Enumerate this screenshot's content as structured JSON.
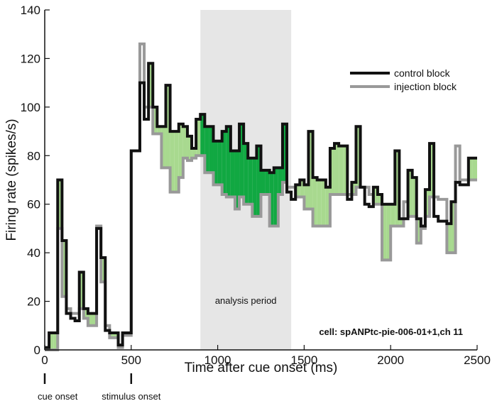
{
  "chart_data": {
    "type": "line",
    "subtype": "step-psth",
    "xlabel": "Time after cue onset (ms)",
    "ylabel": "Firing rate (spikes/s)",
    "xlim": [
      0,
      2500
    ],
    "ylim": [
      0,
      140
    ],
    "x_ticks": [
      0,
      500,
      1000,
      1500,
      2000,
      2500
    ],
    "y_ticks": [
      0,
      20,
      40,
      60,
      80,
      100,
      120,
      140
    ],
    "bin_width_ms": 25,
    "bin_edges": [
      0,
      25,
      50,
      75,
      100,
      125,
      150,
      175,
      200,
      225,
      250,
      275,
      300,
      325,
      350,
      375,
      400,
      425,
      450,
      475,
      500,
      525,
      550,
      575,
      600,
      625,
      650,
      675,
      700,
      725,
      750,
      775,
      800,
      825,
      850,
      875,
      900,
      925,
      950,
      975,
      1000,
      1025,
      1050,
      1075,
      1100,
      1125,
      1150,
      1175,
      1200,
      1225,
      1250,
      1275,
      1300,
      1325,
      1350,
      1375,
      1400,
      1425,
      1450,
      1475,
      1500,
      1525,
      1550,
      1575,
      1600,
      1625,
      1650,
      1675,
      1700,
      1725,
      1750,
      1775,
      1800,
      1825,
      1850,
      1875,
      1900,
      1925,
      1950,
      1975,
      2000,
      2025,
      2050,
      2075,
      2100,
      2125,
      2150,
      2175,
      2200,
      2225,
      2250,
      2275,
      2300,
      2325,
      2350,
      2375,
      2400,
      2425,
      2450,
      2475
    ],
    "series": [
      {
        "name": "control block",
        "color": "#111111",
        "values": [
          1,
          7,
          7,
          70,
          45,
          15,
          13,
          12,
          32,
          17,
          15,
          15,
          50,
          38,
          8,
          7,
          7,
          2,
          7,
          7,
          82,
          82,
          110,
          95,
          118,
          100,
          92,
          92,
          109,
          90,
          90,
          93,
          92,
          88,
          83,
          95,
          97,
          92,
          92,
          86,
          86,
          90,
          92,
          82,
          82,
          93,
          85,
          79,
          79,
          84,
          74,
          74,
          73,
          75,
          75,
          93,
          65,
          62,
          68,
          70,
          68,
          90,
          71,
          70,
          70,
          67,
          83,
          85,
          84,
          84,
          62,
          69,
          92,
          67,
          60,
          59,
          67,
          64,
          60,
          60,
          60,
          82,
          54,
          54,
          74,
          71,
          54,
          51,
          66,
          85,
          55,
          53,
          53,
          52,
          61,
          69,
          68,
          68,
          79,
          79
        ]
      },
      {
        "name": "injection block",
        "color": "#999999",
        "values": [
          0,
          0,
          0,
          50,
          22,
          17,
          15,
          15,
          17,
          13,
          10,
          10,
          51,
          28,
          10,
          5,
          5,
          1,
          6,
          6,
          82,
          82,
          126,
          100,
          100,
          89,
          89,
          75,
          75,
          65,
          65,
          71,
          79,
          78,
          79,
          80,
          80,
          73,
          73,
          68,
          68,
          64,
          63,
          63,
          58,
          63,
          60,
          60,
          55,
          55,
          64,
          64,
          51,
          51,
          64,
          69,
          67,
          67,
          63,
          63,
          58,
          58,
          51,
          51,
          51,
          51,
          64,
          64,
          64,
          64,
          64,
          64,
          67,
          67,
          67,
          64,
          60,
          60,
          37,
          37,
          51,
          51,
          51,
          61,
          55,
          55,
          44,
          50,
          55,
          63,
          63,
          62,
          62,
          40,
          40,
          84,
          70,
          70,
          70,
          70
        ]
      }
    ],
    "shaded_region": {
      "x_start": 900,
      "x_end": 1425,
      "label": "analysis period"
    },
    "fill": {
      "outside_color": "#a8d98f",
      "inside_color": "#11a842",
      "description": "area where control block exceeds injection block"
    },
    "legend": {
      "position": "top-right",
      "entries": [
        "control block",
        "injection block"
      ]
    },
    "markers": [
      {
        "x": 0,
        "label": "cue onset"
      },
      {
        "x": 500,
        "label": "stimulus onset"
      }
    ],
    "annotations": {
      "cell_label": "cell: spANPtc-pie-006-01+1,ch 11"
    }
  }
}
